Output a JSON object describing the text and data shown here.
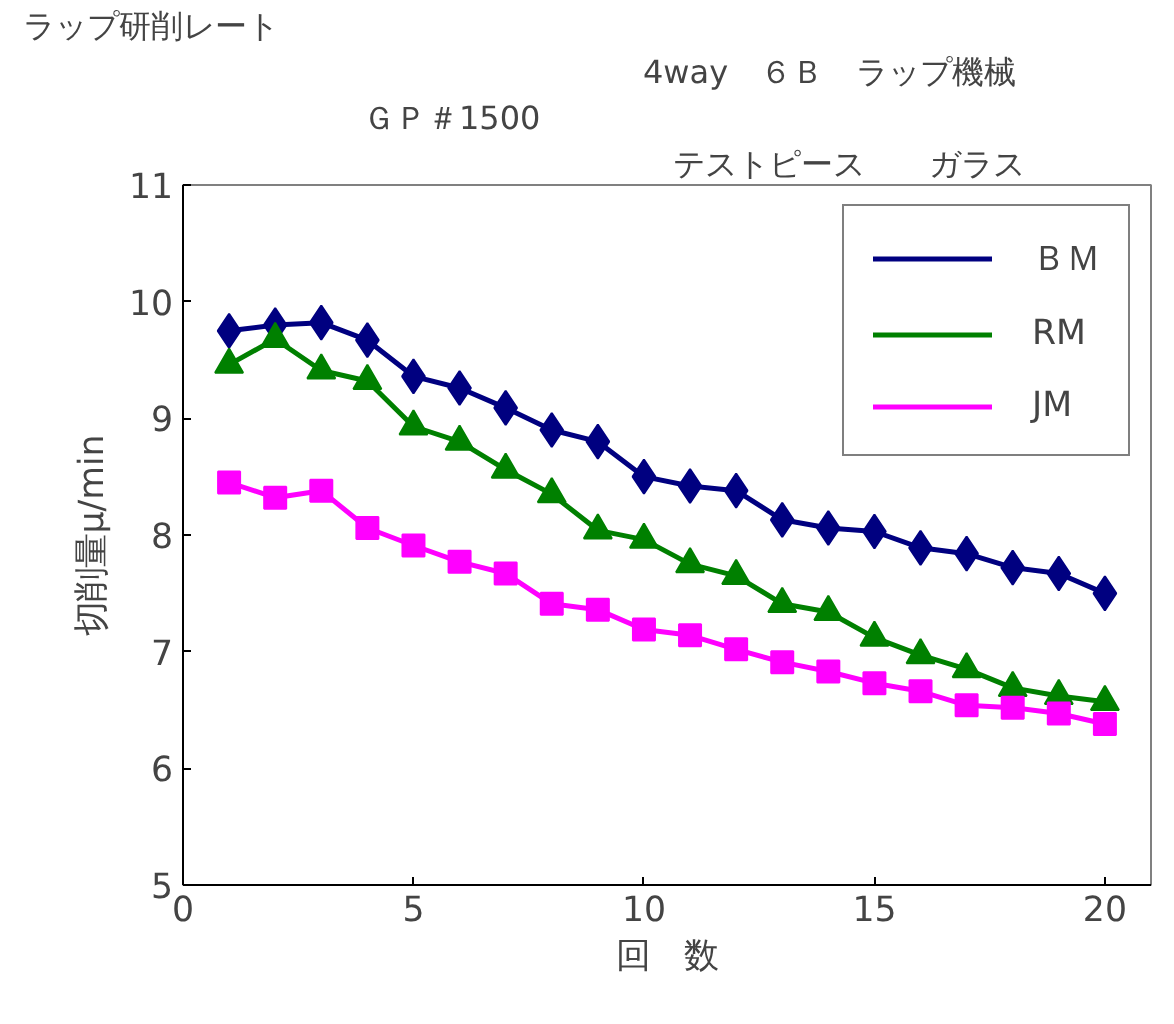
{
  "chart_data": {
    "type": "line",
    "title": "ラップ研削レート",
    "subtitle": "ＧＰ＃1500",
    "annotations": [
      "4way　６Ｂ　ラップ機械",
      "テストピース　　ガラス"
    ],
    "xlabel": "回　数",
    "ylabel": "切削量μ/min",
    "x": [
      1,
      2,
      3,
      4,
      5,
      6,
      7,
      8,
      9,
      10,
      11,
      12,
      13,
      14,
      15,
      16,
      17,
      18,
      19,
      20
    ],
    "xlim": [
      0,
      21
    ],
    "xticks": [
      0,
      5,
      10,
      15,
      20
    ],
    "ylim": [
      5,
      11
    ],
    "yticks": [
      5,
      6,
      7,
      8,
      9,
      10,
      11
    ],
    "grid": false,
    "legend": "top right",
    "line_style": "solid",
    "series": [
      {
        "name": "ＢＭ",
        "color": "#000080",
        "marker": "diamond",
        "values": [
          9.75,
          9.8,
          9.82,
          9.67,
          9.36,
          9.26,
          9.09,
          8.9,
          8.8,
          8.5,
          8.42,
          8.38,
          8.13,
          8.06,
          8.03,
          7.89,
          7.84,
          7.72,
          7.67,
          7.5
        ]
      },
      {
        "name": "RM",
        "color": "#008000",
        "marker": "triangle",
        "values": [
          9.46,
          9.68,
          9.41,
          9.32,
          8.93,
          8.8,
          8.56,
          8.35,
          8.04,
          7.96,
          7.75,
          7.65,
          7.41,
          7.34,
          7.12,
          6.97,
          6.85,
          6.69,
          6.62,
          6.57
        ]
      },
      {
        "name": "JM",
        "color": "#ff00ff",
        "marker": "square",
        "values": [
          8.45,
          8.32,
          8.38,
          8.06,
          7.91,
          7.77,
          7.67,
          7.41,
          7.36,
          7.19,
          7.14,
          7.02,
          6.91,
          6.83,
          6.73,
          6.66,
          6.54,
          6.52,
          6.47,
          6.38
        ]
      }
    ]
  }
}
